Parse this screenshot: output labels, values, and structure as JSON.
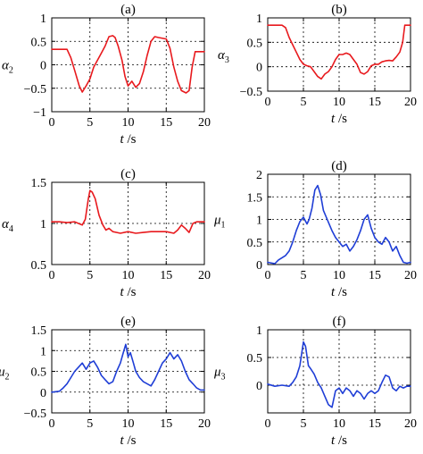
{
  "colors": {
    "red_series": "#e8191d",
    "blue_series": "#1f3ed6"
  },
  "chart_data": [
    {
      "type": "line",
      "panel": "(a)",
      "ylabel_symbol": "α",
      "ylabel_sub": "2",
      "xlabel_var": "t",
      "xlabel_unit": "/s",
      "xlim": [
        0,
        20
      ],
      "ylim": [
        -1,
        1
      ],
      "xticks": [
        0,
        5,
        10,
        15,
        20
      ],
      "yticks": [
        -1,
        -0.5,
        0,
        0.5,
        1
      ],
      "ytick_labels": [
        "−1",
        "−0.5",
        "0",
        "0.5",
        "1"
      ],
      "grid": true,
      "color": "red",
      "series": [
        {
          "x": [
            0,
            2,
            2.5,
            3,
            3.6,
            4,
            4.5,
            5,
            5.5,
            6,
            6.5,
            7,
            7.5,
            8,
            8.3,
            8.7,
            9.2,
            9.6,
            10,
            10.5,
            11,
            11.5,
            12,
            12.5,
            13,
            13.5,
            14,
            15,
            15.5,
            16,
            16.5,
            17,
            17.6,
            18,
            18.4,
            18.8,
            20
          ],
          "y": [
            0.33,
            0.33,
            0.15,
            -0.12,
            -0.45,
            -0.58,
            -0.45,
            -0.3,
            -0.05,
            0.1,
            0.25,
            0.4,
            0.6,
            0.62,
            0.58,
            0.4,
            0.1,
            -0.25,
            -0.45,
            -0.35,
            -0.48,
            -0.4,
            -0.15,
            0.2,
            0.5,
            0.6,
            0.58,
            0.55,
            0.35,
            -0.05,
            -0.35,
            -0.55,
            -0.6,
            -0.55,
            -0.05,
            0.28,
            0.28
          ]
        }
      ]
    },
    {
      "type": "line",
      "panel": "(b)",
      "ylabel_symbol": "α",
      "ylabel_sub": "3",
      "xlabel_var": "t",
      "xlabel_unit": "/s",
      "xlim": [
        0,
        20
      ],
      "ylim": [
        -0.5,
        1
      ],
      "xticks": [
        0,
        5,
        10,
        15,
        20
      ],
      "yticks": [
        -0.5,
        0,
        0.5,
        1
      ],
      "ytick_labels": [
        "−0.5",
        "0",
        "0.5",
        "1"
      ],
      "grid": true,
      "color": "red",
      "series": [
        {
          "x": [
            0,
            1.5,
            2,
            2.5,
            3,
            3.5,
            4,
            4.5,
            5,
            5.5,
            6,
            6.5,
            7,
            7.5,
            8,
            8.5,
            9,
            9.5,
            10,
            10.5,
            11,
            11.5,
            12,
            12.5,
            13,
            13.5,
            14,
            14.5,
            15,
            15.5,
            16,
            16.5,
            17,
            17.5,
            18,
            18.5,
            18.9,
            19.2,
            19.5,
            20
          ],
          "y": [
            0.85,
            0.85,
            0.85,
            0.8,
            0.6,
            0.45,
            0.3,
            0.15,
            0.05,
            0.02,
            0,
            -0.1,
            -0.2,
            -0.25,
            -0.15,
            -0.1,
            0,
            0.15,
            0.25,
            0.25,
            0.28,
            0.25,
            0.15,
            0.05,
            -0.12,
            -0.15,
            -0.1,
            0.02,
            0.05,
            0.05,
            0.1,
            0.12,
            0.13,
            0.12,
            0.2,
            0.3,
            0.5,
            0.85,
            0.85,
            0.85
          ]
        }
      ]
    },
    {
      "type": "line",
      "panel": "(c)",
      "ylabel_symbol": "α",
      "ylabel_sub": "4",
      "xlabel_var": "t",
      "xlabel_unit": "/s",
      "xlim": [
        0,
        20
      ],
      "ylim": [
        0.5,
        1.5
      ],
      "xticks": [
        0,
        5,
        10,
        15,
        20
      ],
      "yticks": [
        0.5,
        1,
        1.5
      ],
      "ytick_labels": [
        "0.5",
        "1",
        "1.5"
      ],
      "grid": true,
      "color": "red",
      "series": [
        {
          "x": [
            0,
            1,
            2,
            3,
            3.5,
            4,
            4.4,
            4.8,
            5,
            5.3,
            5.7,
            6.2,
            6.7,
            7.1,
            7.5,
            8,
            9,
            10,
            11,
            12,
            13,
            14,
            15,
            16,
            16.5,
            17,
            17.5,
            18,
            18.5,
            19,
            20
          ],
          "y": [
            1.02,
            1.02,
            1.01,
            1.02,
            1.0,
            0.98,
            1.05,
            1.3,
            1.4,
            1.38,
            1.3,
            1.1,
            0.98,
            0.92,
            0.94,
            0.9,
            0.88,
            0.9,
            0.88,
            0.89,
            0.9,
            0.9,
            0.9,
            0.88,
            0.92,
            0.98,
            0.94,
            0.89,
            1.0,
            1.02,
            1.02
          ]
        }
      ]
    },
    {
      "type": "line",
      "panel": "(d)",
      "ylabel_symbol": "μ",
      "ylabel_sub": "1",
      "xlabel_var": "t",
      "xlabel_unit": "/s",
      "xlim": [
        0,
        20
      ],
      "ylim": [
        0,
        2
      ],
      "xticks": [
        0,
        5,
        10,
        15,
        20
      ],
      "yticks": [
        0,
        0.5,
        1,
        1.5,
        2
      ],
      "ytick_labels": [
        "0",
        "0.5",
        "1",
        "1.5",
        "2"
      ],
      "grid": true,
      "color": "blue",
      "series": [
        {
          "x": [
            0,
            1,
            1.5,
            2,
            2.5,
            3,
            3.5,
            4,
            4.5,
            5,
            5.5,
            5.8,
            6.2,
            6.6,
            7,
            7.4,
            7.8,
            8.2,
            8.6,
            9,
            9.5,
            10,
            10.5,
            11,
            11.5,
            12,
            12.5,
            13,
            13.5,
            14,
            14.5,
            15,
            15.5,
            16,
            16.5,
            17,
            17.5,
            18,
            18.5,
            19,
            19.5,
            20
          ],
          "y": [
            0.05,
            0.02,
            0.1,
            0.15,
            0.2,
            0.3,
            0.5,
            0.75,
            0.95,
            1.05,
            0.9,
            1.0,
            1.25,
            1.65,
            1.75,
            1.55,
            1.2,
            1.05,
            0.9,
            0.75,
            0.6,
            0.5,
            0.4,
            0.45,
            0.3,
            0.4,
            0.55,
            0.75,
            1.0,
            1.1,
            0.8,
            0.6,
            0.5,
            0.45,
            0.6,
            0.5,
            0.3,
            0.4,
            0.2,
            0.05,
            0.03,
            0.05
          ]
        }
      ]
    },
    {
      "type": "line",
      "panel": "(e)",
      "ylabel_symbol": "μ",
      "ylabel_sub": "2",
      "xlabel_var": "t",
      "xlabel_unit": "/s",
      "xlim": [
        0,
        20
      ],
      "ylim": [
        -0.5,
        1.5
      ],
      "xticks": [
        0,
        5,
        10,
        15,
        20
      ],
      "yticks": [
        -0.5,
        0,
        0.5,
        1,
        1.5
      ],
      "ytick_labels": [
        "−0.5",
        "0",
        "0.5",
        "1",
        "1.5"
      ],
      "grid": true,
      "color": "blue",
      "series": [
        {
          "x": [
            0,
            1,
            1.5,
            2,
            2.5,
            3,
            3.5,
            4,
            4.5,
            5,
            5.5,
            6,
            6.5,
            7,
            7.5,
            8,
            8.5,
            9,
            9.3,
            9.7,
            10,
            10.3,
            10.7,
            11,
            11.5,
            12,
            12.5,
            13,
            13.5,
            14,
            14.5,
            15,
            15.5,
            16,
            16.5,
            17,
            17.5,
            18,
            18.5,
            19,
            19.5,
            20
          ],
          "y": [
            0,
            0.02,
            0.1,
            0.2,
            0.35,
            0.5,
            0.6,
            0.7,
            0.55,
            0.7,
            0.75,
            0.6,
            0.4,
            0.3,
            0.2,
            0.25,
            0.5,
            0.7,
            0.9,
            1.15,
            0.85,
            0.95,
            0.7,
            0.5,
            0.35,
            0.25,
            0.2,
            0.15,
            0.3,
            0.5,
            0.7,
            0.8,
            0.95,
            0.8,
            0.9,
            0.75,
            0.5,
            0.3,
            0.2,
            0.1,
            0.05,
            0.05
          ]
        }
      ]
    },
    {
      "type": "line",
      "panel": "(f)",
      "ylabel_symbol": "μ",
      "ylabel_sub": "3",
      "xlabel_var": "t",
      "xlabel_unit": "/s",
      "xlim": [
        0,
        20
      ],
      "ylim": [
        -0.5,
        1
      ],
      "xticks": [
        0,
        5,
        10,
        15,
        20
      ],
      "yticks": [
        0,
        0.5,
        1
      ],
      "ytick_labels": [
        "0",
        "0.5",
        "1"
      ],
      "grid": true,
      "color": "blue",
      "series": [
        {
          "x": [
            0,
            1,
            2,
            3,
            3.5,
            4,
            4.5,
            5,
            5.3,
            5.7,
            6,
            6.5,
            7,
            7.5,
            8,
            8.5,
            9,
            9.5,
            10,
            10.5,
            11,
            11.5,
            12,
            12.5,
            13,
            13.5,
            14,
            14.5,
            15,
            15.5,
            16,
            16.5,
            17,
            17.5,
            18,
            18.5,
            19,
            19.5,
            20
          ],
          "y": [
            0.02,
            -0.02,
            0,
            -0.02,
            0.05,
            0.15,
            0.35,
            0.78,
            0.7,
            0.35,
            0.3,
            0.2,
            0.05,
            -0.05,
            -0.2,
            -0.35,
            -0.4,
            -0.1,
            -0.05,
            -0.15,
            -0.05,
            -0.1,
            -0.2,
            -0.1,
            -0.15,
            -0.25,
            -0.15,
            -0.1,
            -0.15,
            -0.1,
            0.05,
            0.18,
            0.15,
            -0.05,
            -0.1,
            -0.02,
            -0.05,
            -0.02,
            -0.02
          ]
        }
      ]
    }
  ]
}
